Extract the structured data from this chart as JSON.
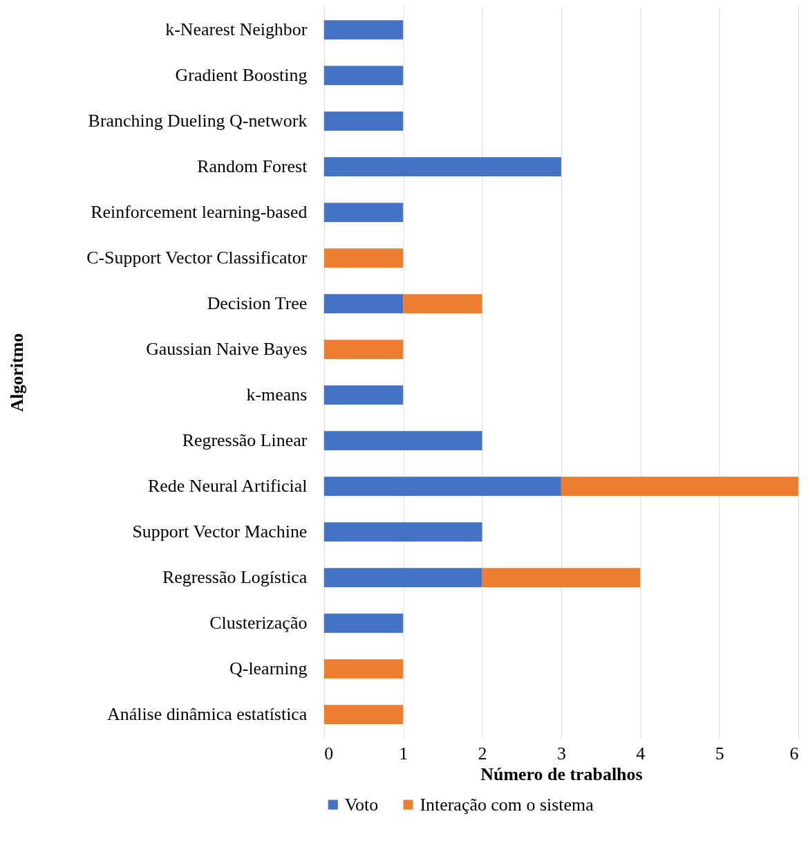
{
  "chart_data": {
    "type": "bar",
    "orientation": "horizontal",
    "stacked": true,
    "categories": [
      "k-Nearest Neighbor",
      "Gradient Boosting",
      "Branching Dueling Q-network",
      "Random Forest",
      "Reinforcement learning-based",
      "C-Support Vector Classificator",
      "Decision Tree",
      "Gaussian Naive Bayes",
      "k-means",
      "Regressão Linear",
      "Rede Neural Artificial",
      "Support Vector Machine",
      "Regressão Logística",
      "Clusterização",
      "Q-learning",
      "Análise dinâmica estatística"
    ],
    "series": [
      {
        "name": "Voto",
        "color": "#4472c4",
        "values": [
          1,
          1,
          1,
          3,
          1,
          null,
          1,
          null,
          1,
          2,
          3,
          2,
          2,
          1,
          null,
          null
        ]
      },
      {
        "name": "Interação com o sistema",
        "color": "#ed7d31",
        "values": [
          null,
          null,
          null,
          null,
          null,
          1,
          1,
          1,
          null,
          null,
          3,
          null,
          2,
          null,
          1,
          1
        ]
      }
    ],
    "xlim": [
      0,
      6
    ],
    "xticks": [
      0,
      1,
      2,
      3,
      4,
      5,
      6
    ],
    "xlabel": "Número de trabalhos",
    "ylabel": "Algoritmo",
    "grid": "x",
    "legend": "bottom"
  }
}
